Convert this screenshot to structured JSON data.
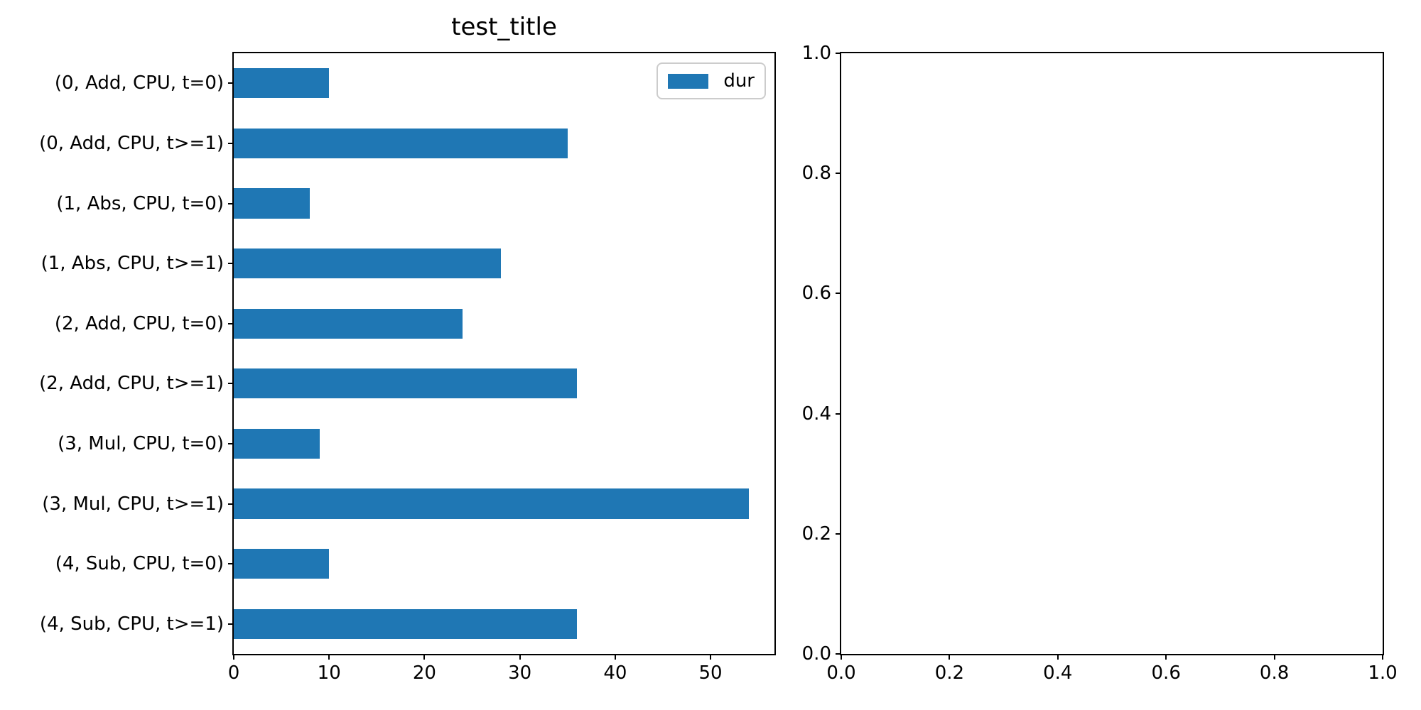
{
  "figure": {
    "background": "#ffffff"
  },
  "chart_data": [
    {
      "type": "bar",
      "orientation": "horizontal",
      "title": "test_title",
      "categories": [
        "(0, Add, CPU, t=0)",
        "(0, Add, CPU, t>=1)",
        "(1, Abs, CPU, t=0)",
        "(1, Abs, CPU, t>=1)",
        "(2, Add, CPU, t=0)",
        "(2, Add, CPU, t>=1)",
        "(3, Mul, CPU, t=0)",
        "(3, Mul, CPU, t>=1)",
        "(4, Sub, CPU, t=0)",
        "(4, Sub, CPU, t>=1)"
      ],
      "series": [
        {
          "name": "dur",
          "values": [
            10,
            35,
            8,
            28,
            24,
            36,
            9,
            54,
            10,
            36
          ]
        }
      ],
      "bar_color": "#1f77b4",
      "xlabel": "",
      "ylabel": "",
      "xlim": [
        0,
        56.7
      ],
      "xticks": [
        0,
        10,
        20,
        30,
        40,
        50
      ],
      "grid": false,
      "legend": {
        "position": "upper-right",
        "entries": [
          "dur"
        ]
      }
    },
    {
      "type": "empty",
      "title": "",
      "xlim": [
        0,
        1
      ],
      "ylim": [
        0,
        1
      ],
      "xticks": [
        "0.0",
        "0.2",
        "0.4",
        "0.6",
        "0.8",
        "1.0"
      ],
      "yticks": [
        "0.0",
        "0.2",
        "0.4",
        "0.6",
        "0.8",
        "1.0"
      ],
      "grid": false
    }
  ]
}
